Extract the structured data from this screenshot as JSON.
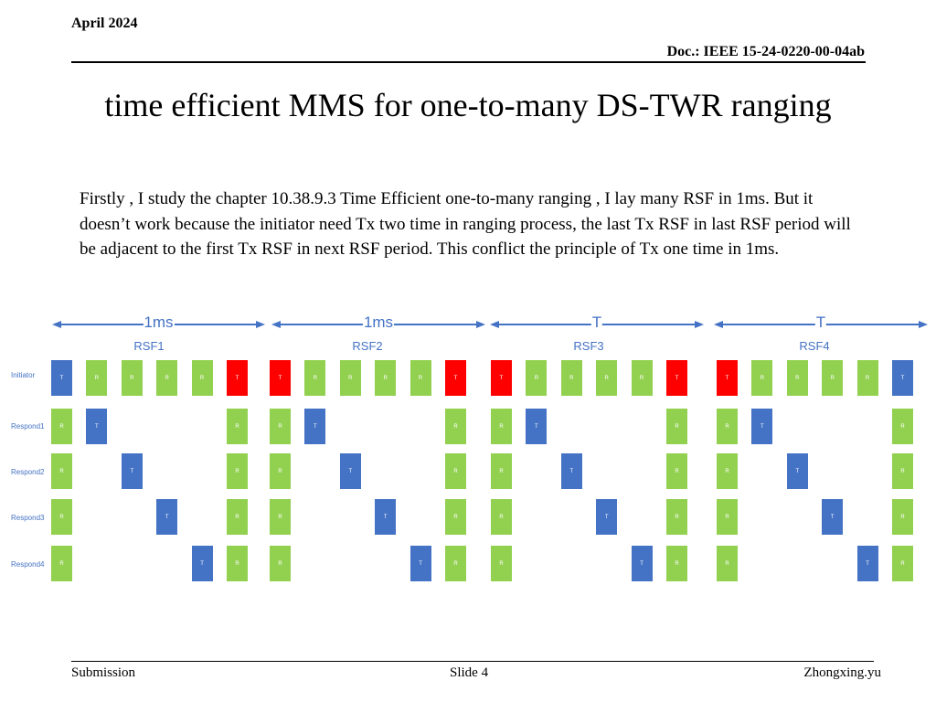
{
  "header": {
    "date": "April 2024",
    "doc": "Doc.: IEEE 15-24-0220-00-04ab"
  },
  "title": "time efficient  MMS for one-to-many DS-TWR ranging",
  "body": "Firstly , I study the chapter 10.38.9.3 Time Efficient one-to-many ranging , I lay many RSF in 1ms. But it doesn’t work because the initiator need Tx two time in ranging process, the last Tx RSF in last RSF period will be adjacent to the first Tx RSF in next RSF period. This conflict the principle of Tx one time in 1ms.",
  "footer": {
    "left": "Submission",
    "center": "Slide 4",
    "right": "Zhongxing.yu"
  },
  "diagram": {
    "colors": {
      "tx": "#4472c4",
      "tx_conflict": "#ff0000",
      "rx": "#92d050",
      "text": "#4472c4"
    },
    "rows": [
      "Initiator",
      "Respond1",
      "Respond2",
      "Respond3",
      "Respond4"
    ],
    "frames": [
      {
        "label": "RSF1",
        "period": "1ms",
        "initiator_first_color": "tx",
        "initiator_last_color": "tx_conflict"
      },
      {
        "label": "RSF2",
        "period": "1ms",
        "initiator_first_color": "tx_conflict",
        "initiator_last_color": "tx_conflict"
      },
      {
        "label": "RSF3",
        "period": "T",
        "initiator_first_color": "tx_conflict",
        "initiator_last_color": "tx_conflict"
      },
      {
        "label": "RSF4",
        "period": "T",
        "initiator_first_color": "tx_conflict",
        "initiator_last_color": "tx"
      }
    ],
    "tx_label": "T",
    "rx_label": "R"
  }
}
